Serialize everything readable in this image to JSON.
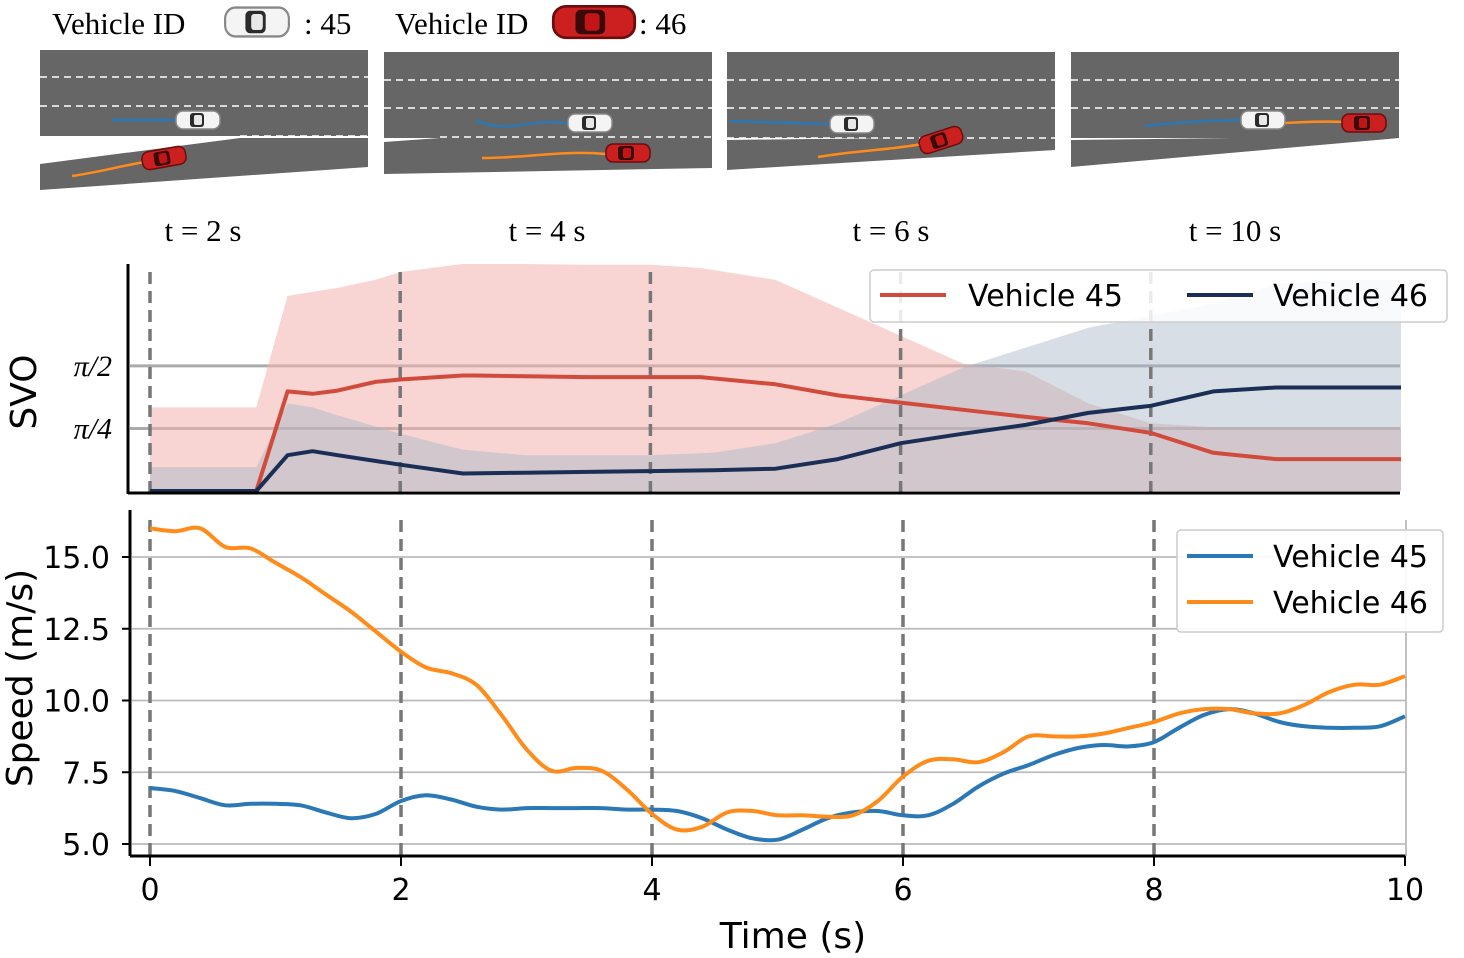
{
  "header": {
    "vehicle_id_label": "Vehicle ID",
    "white_vehicle_id": ": 45",
    "red_vehicle_id": ": 46",
    "white_car_icon": "white-car-icon",
    "red_car_icon": "red-car-icon"
  },
  "snapshots": [
    {
      "label": "t = 2 s"
    },
    {
      "label": "t = 4 s"
    },
    {
      "label": "t = 6 s"
    },
    {
      "label": "t = 10 s"
    }
  ],
  "colors": {
    "road": "#666666",
    "vehicle45_svo": "#d14b3c",
    "vehicle46_svo": "#1b2f56",
    "vehicle45_speed": "#2a78b5",
    "vehicle46_speed": "#ff8c1a",
    "band45": "#f2b3ae",
    "band46": "#a6b5c8"
  },
  "chart_data": [
    {
      "type": "line",
      "ylabel": "SVO",
      "yticks": [
        "π/4",
        "π/2"
      ],
      "ytick_values": [
        0.7854,
        1.5708
      ],
      "ylim": [
        0,
        2.85
      ],
      "xlim": [
        -0.2,
        10
      ],
      "grid": "horizontal at ticks",
      "vlines_at": [
        0,
        2,
        4,
        6,
        8
      ],
      "legend": "top-right",
      "series": [
        {
          "name": "Vehicle 45",
          "x": [
            0,
            0.85,
            1.1,
            1.3,
            1.5,
            1.8,
            2.0,
            2.5,
            2.6,
            3,
            3.5,
            4,
            4.4,
            5,
            5.5,
            6,
            6.5,
            7,
            7.5,
            8,
            8.5,
            9,
            9.5,
            10
          ],
          "values": [
            0,
            0,
            1.25,
            1.22,
            1.26,
            1.37,
            1.4,
            1.45,
            1.45,
            1.44,
            1.43,
            1.43,
            1.43,
            1.34,
            1.2,
            1.11,
            1.02,
            0.93,
            0.85,
            0.73,
            0.48,
            0.4,
            0.4,
            0.4
          ],
          "band_low": [
            0,
            0,
            0,
            0,
            0,
            0,
            0,
            0,
            0,
            0,
            0,
            0,
            0,
            0,
            0,
            0,
            0,
            0,
            0,
            0,
            0,
            0,
            0,
            0
          ],
          "band_high": [
            1.05,
            1.05,
            2.45,
            2.5,
            2.55,
            2.65,
            2.75,
            2.85,
            2.85,
            2.85,
            2.84,
            2.84,
            2.8,
            2.65,
            2.3,
            1.95,
            1.6,
            1.5,
            1.1,
            0.85,
            0.8,
            0.8,
            0.8,
            0.8
          ]
        },
        {
          "name": "Vehicle 46",
          "x": [
            0,
            0.85,
            1.1,
            1.3,
            1.5,
            2.0,
            2.5,
            3,
            3.5,
            4,
            4.5,
            5,
            5.5,
            6,
            6.5,
            7,
            7.5,
            8,
            8.5,
            9,
            9.5,
            10
          ],
          "values": [
            0,
            0,
            0.45,
            0.5,
            0.45,
            0.33,
            0.22,
            0.23,
            0.24,
            0.25,
            0.26,
            0.28,
            0.4,
            0.6,
            0.72,
            0.83,
            0.98,
            1.07,
            1.25,
            1.3,
            1.3,
            1.3
          ],
          "band_low": [
            0,
            0,
            0,
            0,
            0,
            0,
            0,
            0,
            0,
            0,
            0,
            0,
            0,
            0,
            0,
            0,
            0,
            0,
            0,
            0,
            0,
            0
          ],
          "band_high": [
            0.3,
            0.3,
            1.1,
            1.05,
            0.95,
            0.72,
            0.52,
            0.45,
            0.45,
            0.45,
            0.48,
            0.6,
            0.85,
            1.2,
            1.55,
            1.8,
            2.05,
            2.2,
            2.35,
            2.6,
            2.65,
            2.65
          ]
        }
      ]
    },
    {
      "type": "line",
      "xlabel": "Time (s)",
      "ylabel": "Speed (m/s)",
      "xticks": [
        "0",
        "2",
        "4",
        "6",
        "8",
        "10"
      ],
      "xtick_values": [
        0,
        2,
        4,
        6,
        8,
        10
      ],
      "yticks": [
        "5.0",
        "7.5",
        "10.0",
        "12.5",
        "15.0"
      ],
      "ytick_values": [
        5.0,
        7.5,
        10.0,
        12.5,
        15.0
      ],
      "xlim": [
        -0.2,
        10
      ],
      "ylim": [
        4.6,
        16.5
      ],
      "grid": true,
      "vlines_at": [
        0,
        2,
        4,
        6,
        8
      ],
      "legend": "top-right",
      "series": [
        {
          "name": "Vehicle 45",
          "x": [
            0,
            0.2,
            0.4,
            0.6,
            0.8,
            1.0,
            1.2,
            1.4,
            1.6,
            1.8,
            2.0,
            2.2,
            2.4,
            2.6,
            2.8,
            3.0,
            3.2,
            3.4,
            3.6,
            3.8,
            4.0,
            4.2,
            4.4,
            4.6,
            4.8,
            5.0,
            5.2,
            5.4,
            5.6,
            5.8,
            6.0,
            6.2,
            6.4,
            6.6,
            6.8,
            7.0,
            7.2,
            7.4,
            7.6,
            7.8,
            8.0,
            8.2,
            8.4,
            8.6,
            8.8,
            9.0,
            9.2,
            9.4,
            9.6,
            9.8,
            10.0
          ],
          "values": [
            6.95,
            6.85,
            6.6,
            6.35,
            6.4,
            6.4,
            6.35,
            6.1,
            5.9,
            6.05,
            6.5,
            6.7,
            6.55,
            6.3,
            6.2,
            6.25,
            6.25,
            6.25,
            6.25,
            6.2,
            6.2,
            6.15,
            5.9,
            5.5,
            5.2,
            5.15,
            5.5,
            5.9,
            6.1,
            6.15,
            6.0,
            6.0,
            6.4,
            7.0,
            7.45,
            7.75,
            8.1,
            8.35,
            8.45,
            8.4,
            8.55,
            9.05,
            9.5,
            9.7,
            9.55,
            9.25,
            9.1,
            9.05,
            9.05,
            9.1,
            9.45
          ]
        },
        {
          "name": "Vehicle 46",
          "x": [
            0,
            0.2,
            0.4,
            0.6,
            0.8,
            1.0,
            1.2,
            1.4,
            1.6,
            1.8,
            2.0,
            2.2,
            2.4,
            2.6,
            2.8,
            3.0,
            3.2,
            3.4,
            3.6,
            3.8,
            4.0,
            4.2,
            4.4,
            4.6,
            4.8,
            5.0,
            5.2,
            5.4,
            5.6,
            5.8,
            6.0,
            6.2,
            6.4,
            6.6,
            6.8,
            7.0,
            7.2,
            7.4,
            7.6,
            7.8,
            8.0,
            8.2,
            8.4,
            8.6,
            8.8,
            9.0,
            9.2,
            9.4,
            9.6,
            9.8,
            10.0
          ],
          "values": [
            16.0,
            15.9,
            16.0,
            15.35,
            15.3,
            14.8,
            14.3,
            13.7,
            13.1,
            12.4,
            11.7,
            11.15,
            10.95,
            10.55,
            9.5,
            8.3,
            7.55,
            7.65,
            7.55,
            6.9,
            6.05,
            5.5,
            5.6,
            6.1,
            6.15,
            6.0,
            6.0,
            5.95,
            6.0,
            6.5,
            7.35,
            7.9,
            7.95,
            7.85,
            8.2,
            8.75,
            8.75,
            8.75,
            8.85,
            9.05,
            9.25,
            9.55,
            9.7,
            9.7,
            9.55,
            9.55,
            9.85,
            10.3,
            10.55,
            10.55,
            10.85
          ]
        }
      ]
    }
  ]
}
